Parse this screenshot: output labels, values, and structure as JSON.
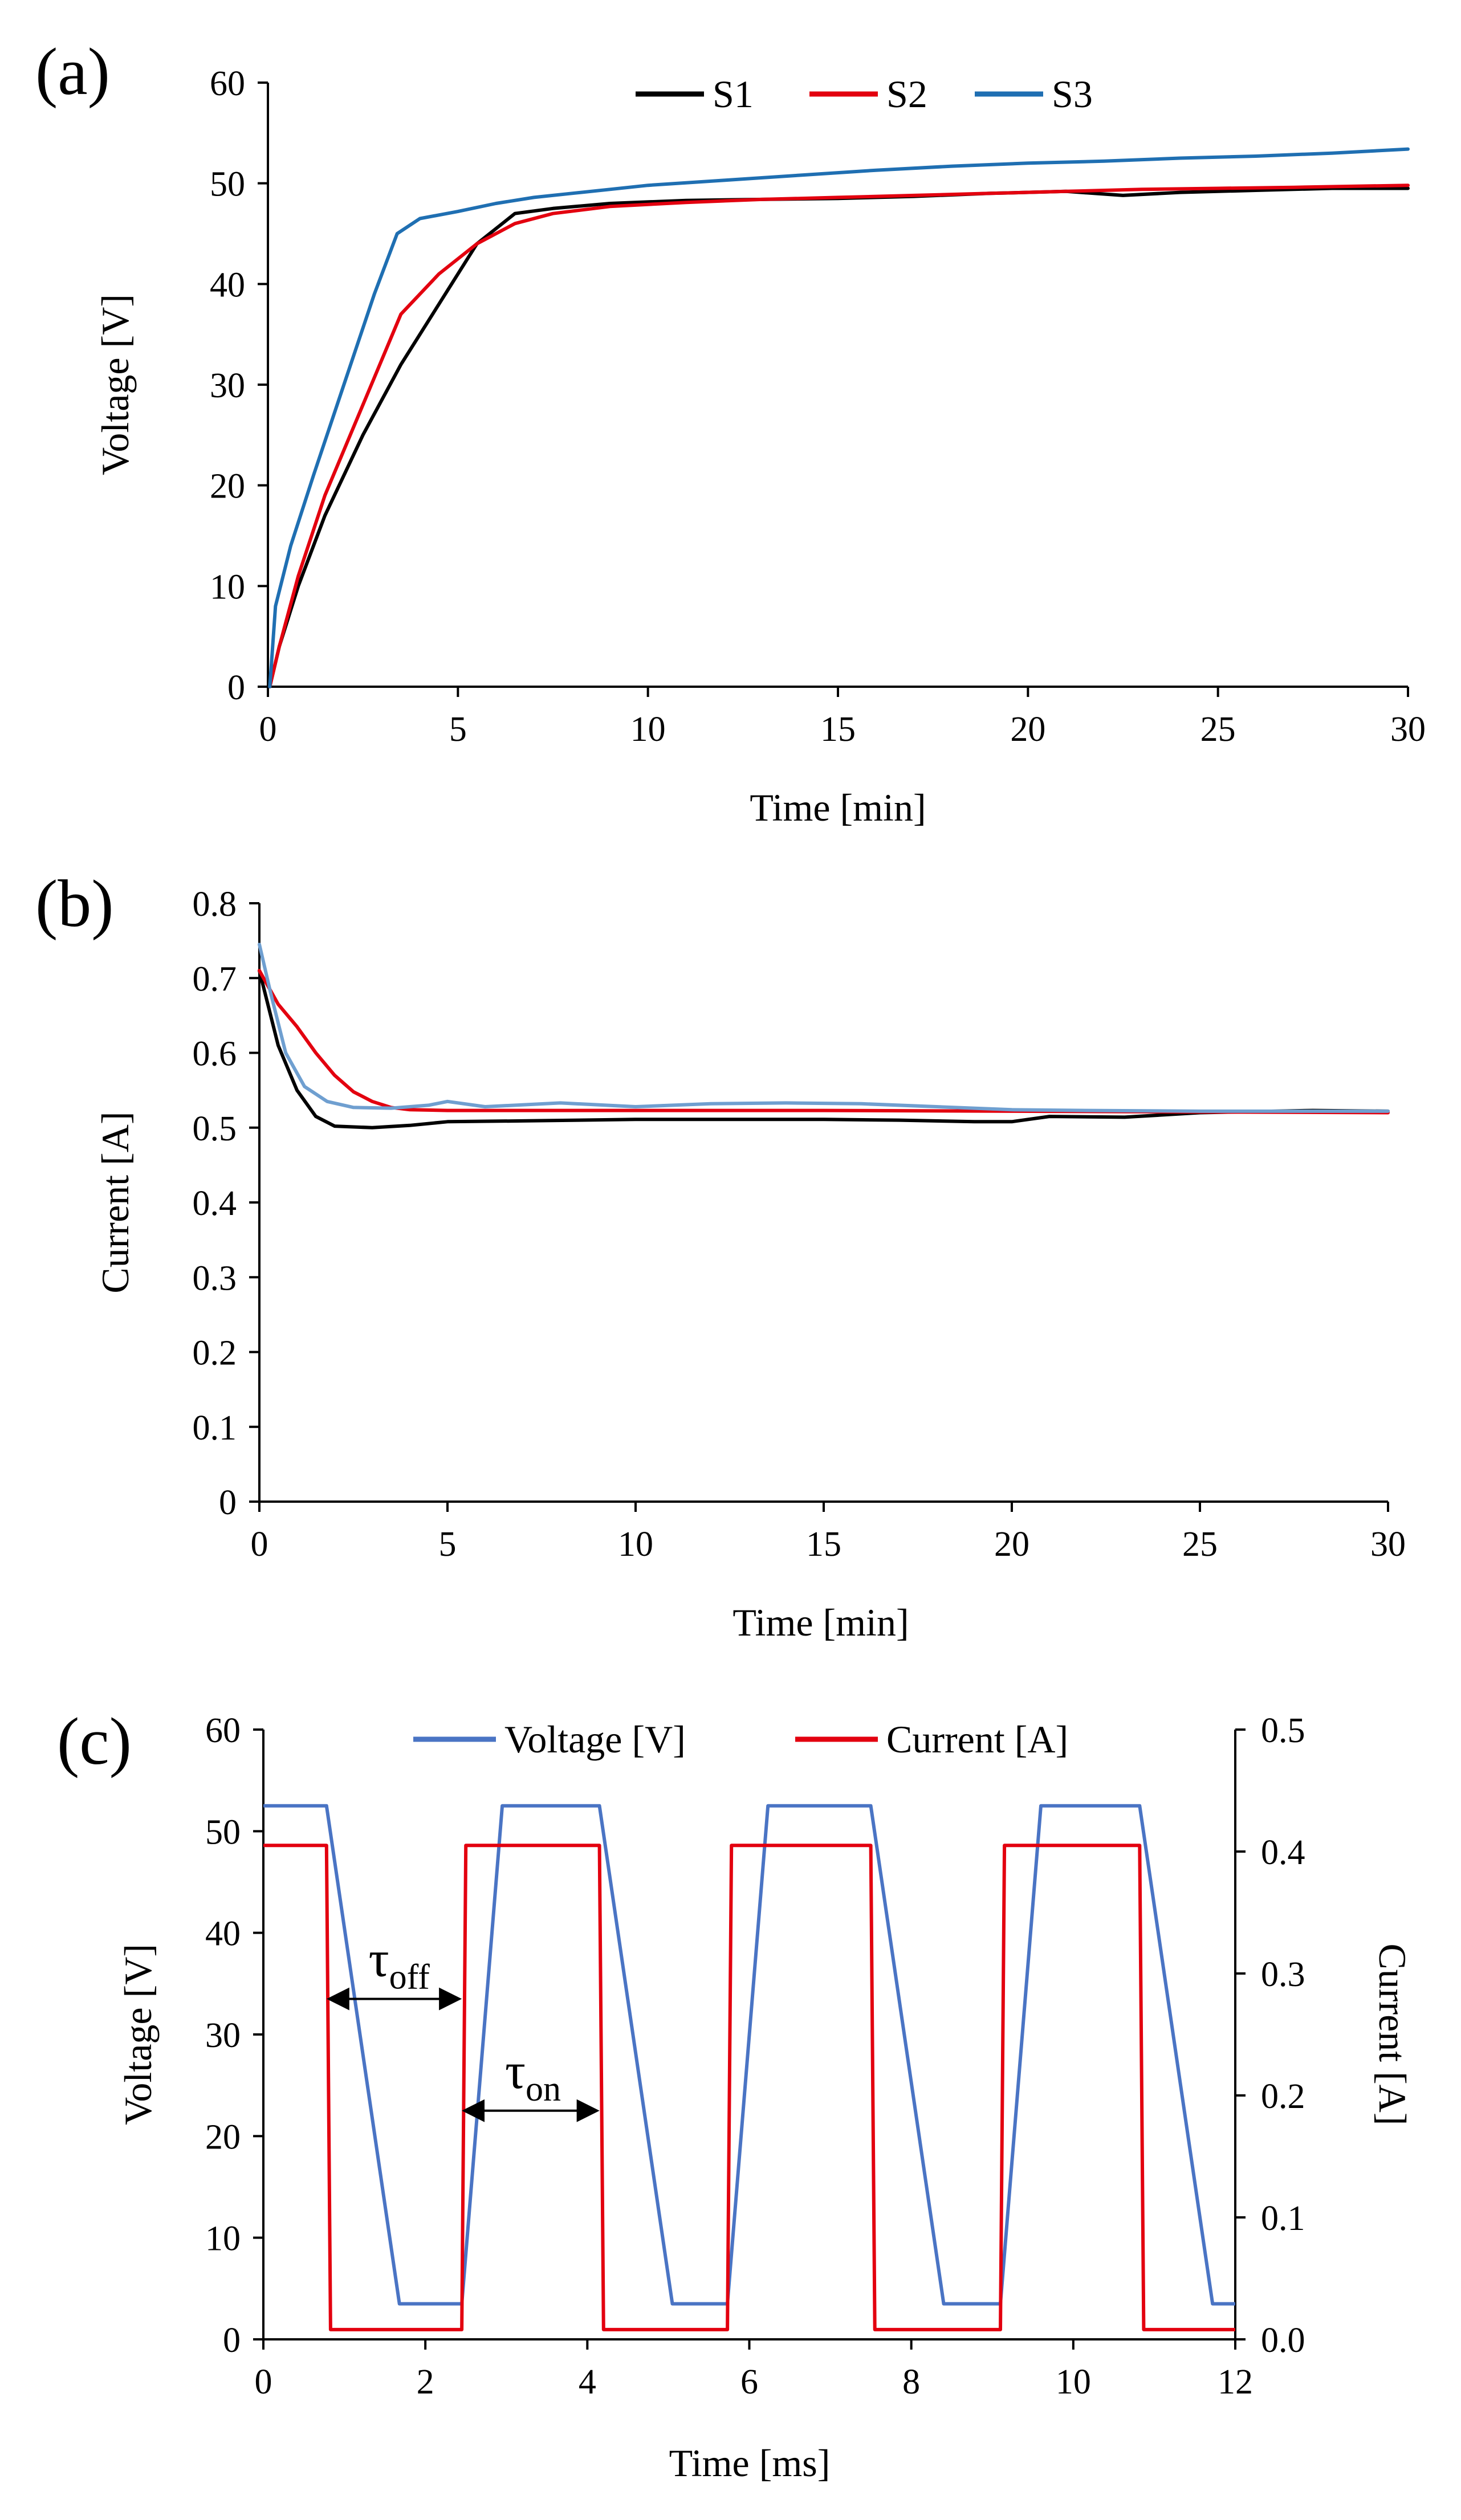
{
  "chart_data": [
    {
      "panel_label": "(a)",
      "type": "line",
      "title": "",
      "xlabel": "Time [min]",
      "ylabel": "Voltage [V]",
      "xlim": [
        0,
        30
      ],
      "ylim": [
        0,
        60
      ],
      "xticks": [
        0,
        5,
        10,
        15,
        20,
        25,
        30
      ],
      "yticks": [
        0,
        10,
        20,
        30,
        40,
        50,
        60
      ],
      "grid": false,
      "legend_position": "top-right",
      "series": [
        {
          "name": "S1",
          "color": "#000000",
          "x": [
            0.05,
            0.3,
            0.8,
            1.5,
            2.5,
            3.5,
            4.5,
            5.5,
            6.5,
            7.5,
            9,
            11,
            13,
            15,
            17,
            19,
            21,
            22.5,
            24,
            26,
            28,
            30
          ],
          "y": [
            0,
            4,
            10,
            17,
            25,
            32,
            38,
            44,
            47,
            47.5,
            48,
            48.3,
            48.4,
            48.5,
            48.7,
            49,
            49.2,
            48.8,
            49.1,
            49.3,
            49.5,
            49.5
          ]
        },
        {
          "name": "S2",
          "color": "#e3000f",
          "x": [
            0.05,
            0.3,
            0.8,
            1.5,
            2.5,
            3.5,
            4.5,
            5.5,
            6.5,
            7.5,
            9,
            11,
            13,
            15,
            17,
            19,
            21,
            23,
            25,
            27,
            30
          ],
          "y": [
            0,
            4,
            11,
            19,
            28,
            37,
            41,
            44,
            46,
            47,
            47.7,
            48.1,
            48.4,
            48.6,
            48.8,
            49,
            49.2,
            49.4,
            49.5,
            49.6,
            49.8
          ]
        },
        {
          "name": "S3",
          "color": "#1f6fb2",
          "x": [
            0.05,
            0.2,
            0.6,
            1.2,
            2,
            2.8,
            3.4,
            4,
            5,
            6,
            7,
            8,
            9,
            10,
            12,
            14,
            16,
            18,
            20,
            22,
            24,
            26,
            28,
            30
          ],
          "y": [
            0,
            8,
            14,
            21,
            30,
            39,
            45,
            46.5,
            47.2,
            48,
            48.6,
            49,
            49.4,
            49.8,
            50.3,
            50.8,
            51.3,
            51.7,
            52,
            52.2,
            52.5,
            52.7,
            53,
            53.4
          ]
        }
      ]
    },
    {
      "panel_label": "(b)",
      "type": "line",
      "title": "",
      "xlabel": "Time [min]",
      "ylabel": "Current [A]",
      "xlim": [
        0,
        30
      ],
      "ylim": [
        0,
        0.8
      ],
      "xticks": [
        0,
        5,
        10,
        15,
        20,
        25,
        30
      ],
      "yticks": [
        0,
        0.1,
        0.2,
        0.3,
        0.4,
        0.5,
        0.6,
        0.7,
        0.8
      ],
      "ytick_labels": [
        "0",
        "0.1",
        "0.2",
        "0.3",
        "0.4",
        "0.5",
        "0.6",
        "0.7",
        "0.8"
      ],
      "grid": false,
      "series": [
        {
          "name": "S1",
          "color": "#000000",
          "x": [
            0,
            0.5,
            1,
            1.5,
            2,
            3,
            4,
            5,
            7,
            10,
            13,
            15,
            17,
            19,
            20,
            21,
            23,
            25,
            27,
            28,
            30
          ],
          "y": [
            0.71,
            0.61,
            0.55,
            0.515,
            0.502,
            0.5,
            0.503,
            0.508,
            0.509,
            0.511,
            0.511,
            0.511,
            0.51,
            0.508,
            0.508,
            0.515,
            0.514,
            0.52,
            0.522,
            0.523,
            0.522
          ]
        },
        {
          "name": "S2",
          "color": "#e3000f",
          "x": [
            0,
            0.5,
            1,
            1.5,
            2,
            2.5,
            3,
            3.5,
            4,
            5,
            8,
            10,
            15,
            20,
            25,
            30
          ],
          "y": [
            0.71,
            0.665,
            0.635,
            0.6,
            0.57,
            0.548,
            0.535,
            0.527,
            0.524,
            0.523,
            0.523,
            0.523,
            0.523,
            0.522,
            0.521,
            0.52
          ]
        },
        {
          "name": "S3",
          "color": "#6f9fd0",
          "x": [
            0,
            0.3,
            0.7,
            1.2,
            1.8,
            2.5,
            3.5,
            4.5,
            5,
            6,
            8,
            10,
            12,
            14,
            16,
            18,
            20,
            22,
            25,
            30
          ],
          "y": [
            0.745,
            0.68,
            0.6,
            0.555,
            0.535,
            0.527,
            0.526,
            0.53,
            0.535,
            0.528,
            0.533,
            0.528,
            0.532,
            0.533,
            0.532,
            0.528,
            0.524,
            0.523,
            0.522,
            0.522
          ]
        }
      ]
    },
    {
      "panel_label": "(c)",
      "type": "line",
      "title": "",
      "xlabel": "Time [ms]",
      "ylabel": "Voltage [V]",
      "ylabel_right": "Current [A]",
      "xlim": [
        0,
        12
      ],
      "ylim": [
        0,
        60
      ],
      "ylim_right": [
        0,
        0.5
      ],
      "xticks": [
        0,
        2,
        4,
        6,
        8,
        10,
        12
      ],
      "yticks": [
        0,
        10,
        20,
        30,
        40,
        50,
        60
      ],
      "yticks_right": [
        0,
        0.1,
        0.2,
        0.3,
        0.4,
        0.5
      ],
      "ytick_labels_right": [
        "0.0",
        "0.1",
        "0.2",
        "0.3",
        "0.4",
        "0.5"
      ],
      "legend_position": "top-center",
      "pulse_edges_ms": [
        {
          "on_start": 0,
          "off_start": 0.78
        },
        {
          "on_start": 2.45,
          "off_start": 4.15
        },
        {
          "on_start": 5.73,
          "off_start": 7.5
        },
        {
          "on_start": 9.1,
          "off_start": 10.82
        }
      ],
      "series": [
        {
          "name": "Voltage [V]",
          "axis": "left",
          "color": "#4a74c4",
          "on_level": 52.5,
          "off_level": 3.5,
          "rise_ms": 0.5,
          "fall_ms": 0.9
        },
        {
          "name": "Current [A]",
          "axis": "right",
          "color": "#e3000f",
          "on_level": 0.405,
          "off_level": 0.008,
          "rise_ms": 0.05,
          "fall_ms": 0.05
        }
      ],
      "annotations": [
        {
          "symbol": "τ",
          "subscript": "off",
          "from_ms": 0.78,
          "to_ms": 2.45,
          "at_value": 33.5
        },
        {
          "symbol": "τ",
          "subscript": "on",
          "from_ms": 2.45,
          "to_ms": 4.15,
          "at_value": 22.5
        }
      ]
    }
  ]
}
